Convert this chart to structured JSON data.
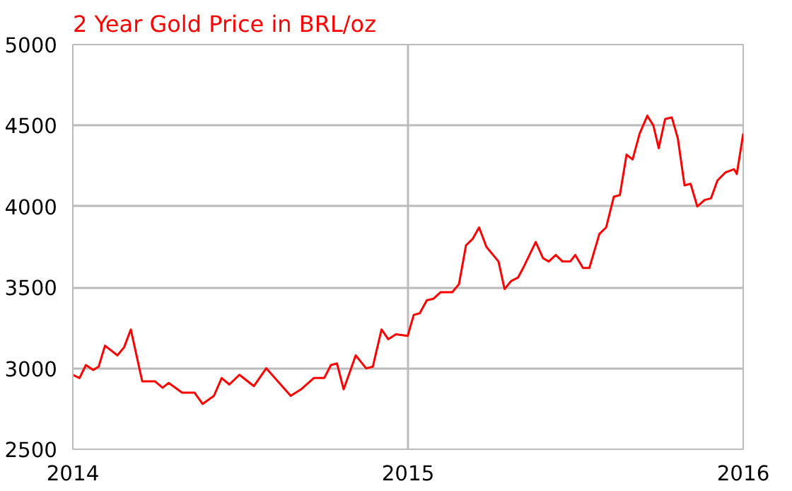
{
  "chart_data": {
    "type": "line",
    "title": "2 Year Gold Price in BRL/oz",
    "xlim": [
      2014,
      2016
    ],
    "ylim": [
      2500,
      5000
    ],
    "xticks": [
      2014,
      2015,
      2016
    ],
    "yticks": [
      2500,
      3000,
      3500,
      4000,
      4500,
      5000
    ],
    "grid": true,
    "marker": "none",
    "line_style": "solid",
    "series": [
      {
        "color": "#ff0000",
        "x": [
          2014.0,
          2014.02,
          2014.039,
          2014.061,
          2014.077,
          2014.096,
          2014.133,
          2014.153,
          2014.173,
          2014.207,
          2014.245,
          2014.268,
          2014.286,
          2014.326,
          2014.363,
          2014.387,
          2014.421,
          2014.444,
          2014.467,
          2014.497,
          2014.54,
          2014.577,
          2014.65,
          2014.681,
          2014.719,
          2014.75,
          2014.77,
          2014.788,
          2014.808,
          2014.844,
          2014.875,
          2014.895,
          2014.921,
          2014.941,
          2014.964,
          2014.999,
          2015.017,
          2015.035,
          2015.056,
          2015.076,
          2015.097,
          2015.132,
          2015.152,
          2015.173,
          2015.193,
          2015.212,
          2015.234,
          2015.27,
          2015.288,
          2015.308,
          2015.328,
          2015.346,
          2015.381,
          2015.403,
          2015.42,
          2015.441,
          2015.461,
          2015.484,
          2015.499,
          2015.522,
          2015.541,
          2015.571,
          2015.591,
          2015.614,
          2015.632,
          2015.652,
          2015.67,
          2015.691,
          2015.714,
          2015.732,
          2015.748,
          2015.767,
          2015.787,
          2015.805,
          2015.825,
          2015.843,
          2015.863,
          2015.885,
          2015.904,
          2015.923,
          2015.947,
          2015.973,
          2015.981,
          2016.0
        ],
        "values": [
          2960,
          2940,
          3020,
          2990,
          3010,
          3140,
          3080,
          3130,
          3240,
          2920,
          2920,
          2880,
          2910,
          2850,
          2850,
          2780,
          2830,
          2940,
          2900,
          2960,
          2890,
          3000,
          2830,
          2870,
          2940,
          2940,
          3020,
          3030,
          2870,
          3080,
          3000,
          3010,
          3240,
          3180,
          3210,
          3200,
          3330,
          3340,
          3420,
          3430,
          3470,
          3470,
          3520,
          3760,
          3800,
          3870,
          3750,
          3660,
          3490,
          3540,
          3560,
          3630,
          3780,
          3680,
          3660,
          3700,
          3660,
          3660,
          3700,
          3620,
          3620,
          3830,
          3870,
          4060,
          4070,
          4320,
          4290,
          4450,
          4560,
          4500,
          4360,
          4540,
          4550,
          4420,
          4130,
          4140,
          4000,
          4040,
          4050,
          4160,
          4210,
          4230,
          4200,
          4450
        ]
      }
    ]
  }
}
